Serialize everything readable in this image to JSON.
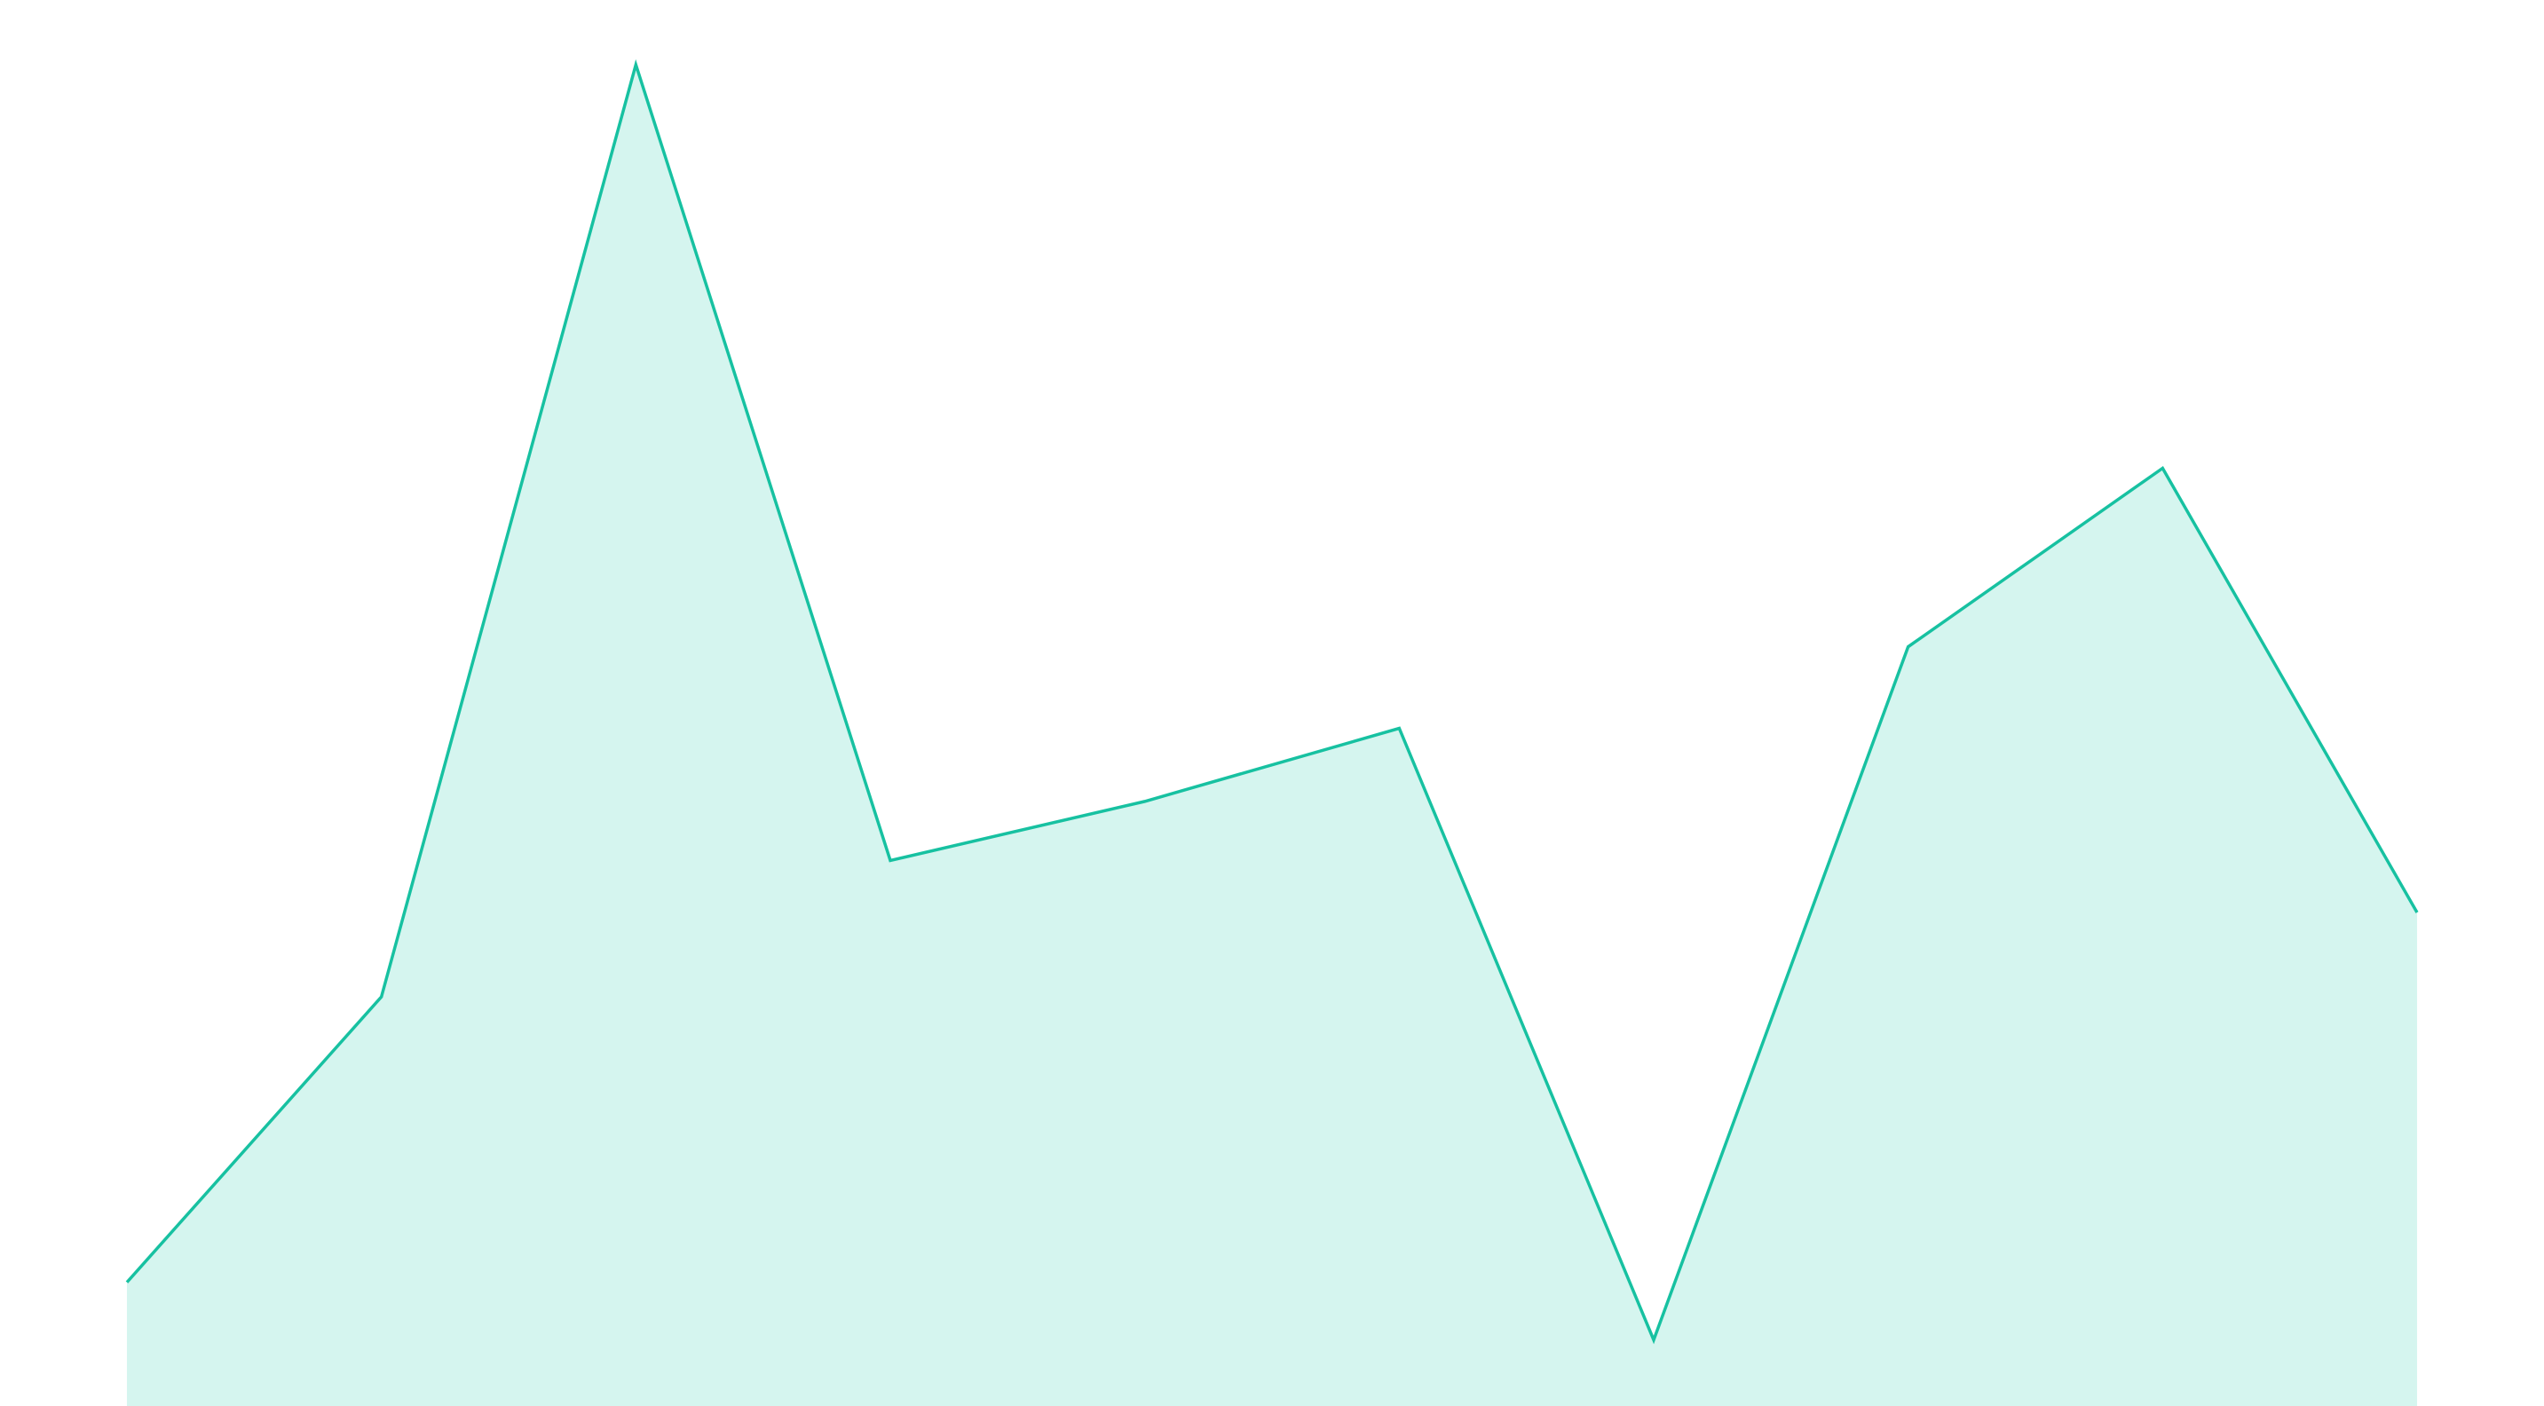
{
  "chart_data": {
    "type": "area",
    "values": [
      8.8,
      29.1,
      95.4,
      38.8,
      43.0,
      48.2,
      4.7,
      54.0,
      66.7,
      35.1
    ],
    "color": "#17c1a1",
    "fill": "#d5f5ef",
    "ylim": [
      0,
      100
    ]
  }
}
